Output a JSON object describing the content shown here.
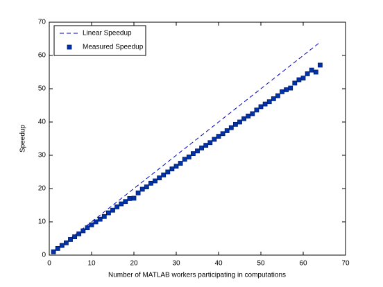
{
  "chart_data": {
    "type": "line",
    "xlabel": "Number of MATLAB workers participating in computations",
    "ylabel": "Speedup",
    "xlim": [
      0,
      70
    ],
    "ylim": [
      0,
      70
    ],
    "xticks": [
      0,
      10,
      20,
      30,
      40,
      50,
      60,
      70
    ],
    "yticks": [
      0,
      10,
      20,
      30,
      40,
      50,
      60,
      70
    ],
    "legend_location": "northwest",
    "x": [
      1,
      2,
      3,
      4,
      5,
      6,
      7,
      8,
      9,
      10,
      11,
      12,
      13,
      14,
      15,
      16,
      17,
      18,
      19,
      20,
      21,
      22,
      23,
      24,
      25,
      26,
      27,
      28,
      29,
      30,
      31,
      32,
      33,
      34,
      35,
      36,
      37,
      38,
      39,
      40,
      41,
      42,
      43,
      44,
      45,
      46,
      47,
      48,
      49,
      50,
      51,
      52,
      53,
      54,
      55,
      56,
      57,
      58,
      59,
      60,
      61,
      62,
      63,
      64
    ],
    "series": [
      {
        "name": "Linear Speedup",
        "color": "#0000c0",
        "line_style": "dashed",
        "values": [
          1,
          2,
          3,
          4,
          5,
          6,
          7,
          8,
          9,
          10,
          11,
          12,
          13,
          14,
          15,
          16,
          17,
          18,
          19,
          20,
          21,
          22,
          23,
          24,
          25,
          26,
          27,
          28,
          29,
          30,
          31,
          32,
          33,
          34,
          35,
          36,
          37,
          38,
          39,
          40,
          41,
          42,
          43,
          44,
          45,
          46,
          47,
          48,
          49,
          50,
          51,
          52,
          53,
          54,
          55,
          56,
          57,
          58,
          59,
          60,
          61,
          62,
          63,
          64
        ]
      },
      {
        "name": "Measured Speedup",
        "color": "#0033aa",
        "marker": "square",
        "values": [
          1.0,
          2.0,
          2.9,
          3.7,
          4.7,
          5.5,
          6.4,
          7.3,
          8.2,
          9.1,
          10.0,
          10.8,
          11.6,
          12.7,
          13.5,
          14.5,
          15.4,
          16.1,
          17.0,
          17.1,
          18.7,
          19.8,
          20.5,
          21.6,
          22.3,
          23.2,
          24.1,
          25.0,
          25.9,
          26.7,
          27.6,
          28.8,
          29.5,
          30.5,
          31.3,
          32.2,
          33.0,
          33.8,
          34.8,
          35.7,
          36.5,
          37.4,
          38.3,
          39.3,
          40.0,
          41.0,
          41.8,
          42.5,
          43.6,
          44.6,
          45.4,
          46.1,
          47.0,
          47.9,
          49.1,
          49.7,
          50.2,
          51.7,
          52.7,
          53.2,
          54.5,
          55.6,
          55.0,
          57.1
        ]
      }
    ]
  }
}
